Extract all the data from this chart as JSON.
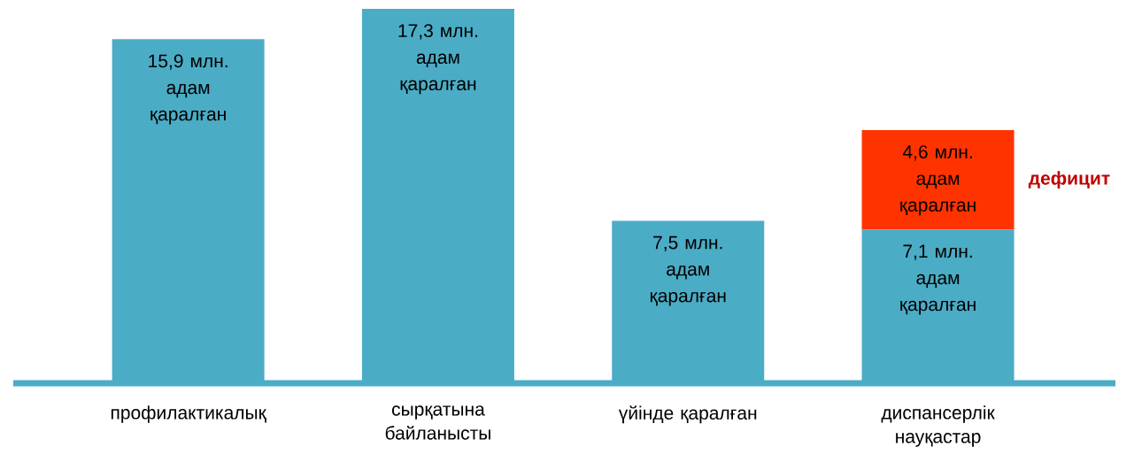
{
  "chart_data": {
    "type": "bar",
    "stacked": true,
    "categories": [
      "профилактикалық",
      "сырқатына байланысты",
      "үйінде қаралған",
      "диспансерлік науқастар"
    ],
    "series": [
      {
        "color": "#4bacc6",
        "values": [
          15.9,
          17.3,
          7.5,
          7.1
        ],
        "value_labels": [
          "15,9 млн. адам қаралған",
          "17,3 млн. адам қаралған",
          "7,5 млн. адам қаралған",
          "7,1 млн. адам қаралған"
        ]
      },
      {
        "name": "дефицит",
        "color": "#ff3300",
        "values": [
          null,
          null,
          null,
          4.6
        ],
        "value_labels": [
          null,
          null,
          null,
          "4,6 млн. адам қаралған"
        ]
      }
    ]
  }
}
